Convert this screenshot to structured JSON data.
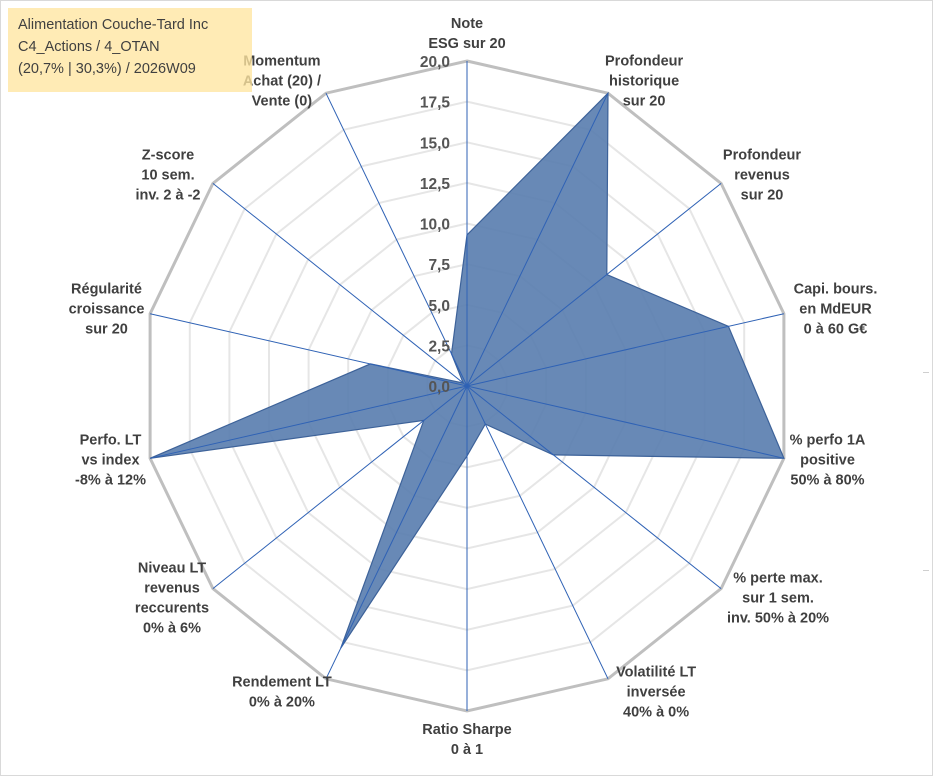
{
  "info": {
    "company": "Alimentation Couche-Tard Inc",
    "portfolio": "C4_Actions / 4_OTAN",
    "period": "(20,7% | 30,3%) / 2026W09"
  },
  "chart_data": {
    "type": "radar",
    "title": "",
    "rmin": 0,
    "rmax": 20,
    "tick_step": 2.5,
    "tick_labels": [
      "0,0",
      "2,5",
      "5,0",
      "7,5",
      "10,0",
      "12,5",
      "15,0",
      "17,5",
      "20,0"
    ],
    "axes": [
      {
        "label": [
          "Note",
          "ESG sur 20"
        ],
        "value": 9.3
      },
      {
        "label": [
          "Profondeur",
          "historique",
          "sur 20"
        ],
        "value": 20.0
      },
      {
        "label": [
          "Profondeur",
          "revenus",
          "sur 20"
        ],
        "value": 11.0
      },
      {
        "label": [
          "Capi. bours.",
          "en MdEUR",
          "0 à 60 G€"
        ],
        "value": 16.5
      },
      {
        "label": [
          "% perfo 1A",
          "positive",
          "50% à 80%"
        ],
        "value": 20.0
      },
      {
        "label": [
          "% perte max.",
          "sur 1 sem.",
          "inv. 50% à 20%"
        ],
        "value": 6.8
      },
      {
        "label": [
          "Volatilité LT",
          "inversée",
          "40% à 0%"
        ],
        "value": 2.6
      },
      {
        "label": [
          "Ratio Sharpe",
          "0 à 1"
        ],
        "value": 4.3
      },
      {
        "label": [
          "Rendement LT",
          "0% à 20%"
        ],
        "value": 17.9
      },
      {
        "label": [
          "Niveau LT",
          "revenus",
          "reccurents",
          "0% à 6%"
        ],
        "value": 3.4
      },
      {
        "label": [
          "Perfo. LT",
          "vs index",
          "-8% à 12%"
        ],
        "value": 20.0
      },
      {
        "label": [
          "Régularité",
          "croissance",
          "sur 20"
        ],
        "value": 6.1
      },
      {
        "label": [
          "Z-score",
          "10 sem.",
          "inv. 2 à -2"
        ],
        "value": 0.3
      },
      {
        "label": [
          "Momentum",
          "Achat (20) /",
          "Vente (0)"
        ],
        "value": 2.2
      }
    ],
    "series": [
      {
        "name": "Alimentation Couche-Tard Inc",
        "color": "#4f76a9"
      }
    ],
    "grid": true
  },
  "colors": {
    "fill": "#5b7fb0",
    "stroke": "#3d6299",
    "spoke": "#2f62b5",
    "grid": "#bfbfbf",
    "ring": "#e6e6e6"
  }
}
